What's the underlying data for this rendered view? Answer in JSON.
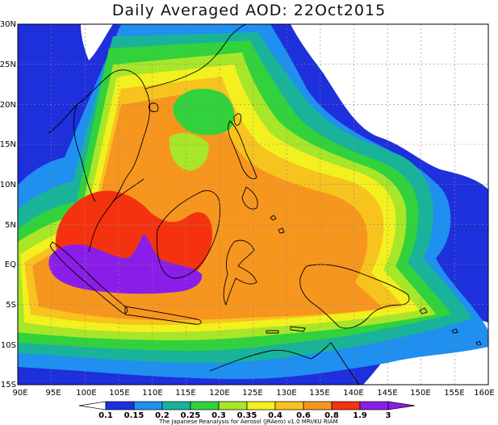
{
  "title": "Daily Averaged AOD: 22Oct2015",
  "credit": "The Japanese Reanalysis for Aerosol (JRAero) v1.0 MRI/KU RIAM",
  "lat_labels": [
    "30N",
    "25N",
    "20N",
    "15N",
    "10N",
    "5N",
    "EQ",
    "5S",
    "10S",
    "15S"
  ],
  "lon_labels": [
    "90E",
    "95E",
    "100E",
    "105E",
    "110E",
    "115E",
    "120E",
    "125E",
    "130E",
    "135E",
    "140E",
    "145E",
    "150E",
    "155E",
    "160E"
  ],
  "colorbar": {
    "levels": [
      "0.1",
      "0.15",
      "0.2",
      "0.25",
      "0.3",
      "0.35",
      "0.4",
      "0.6",
      "0.8",
      "1.9",
      "3"
    ],
    "colors": [
      "#ffffff",
      "#1e2fdc",
      "#1f8ff0",
      "#19b39a",
      "#31d23c",
      "#a8e629",
      "#f2f01e",
      "#f7c31e",
      "#f7961e",
      "#f53210",
      "#8a1ee8",
      "#8a1ee8"
    ]
  },
  "chart_data": {
    "type": "heatmap",
    "title": "Daily Averaged AOD: 22Oct2015",
    "xrange": [
      90,
      160
    ],
    "yrange": [
      -15,
      30
    ],
    "levels": [
      0.1,
      0.15,
      0.2,
      0.25,
      0.3,
      0.35,
      0.4,
      0.6,
      0.8,
      1.9,
      3
    ]
  },
  "colors": {
    "white": "#ffffff",
    "blue": "#1e2fdc",
    "sky": "#1f8ff0",
    "teal": "#19b39a",
    "green": "#31d23c",
    "lime": "#a8e629",
    "yellow": "#f2f01e",
    "gold": "#f7c31e",
    "orange": "#f7961e",
    "red": "#f53210",
    "purple": "#8a1ee8"
  }
}
